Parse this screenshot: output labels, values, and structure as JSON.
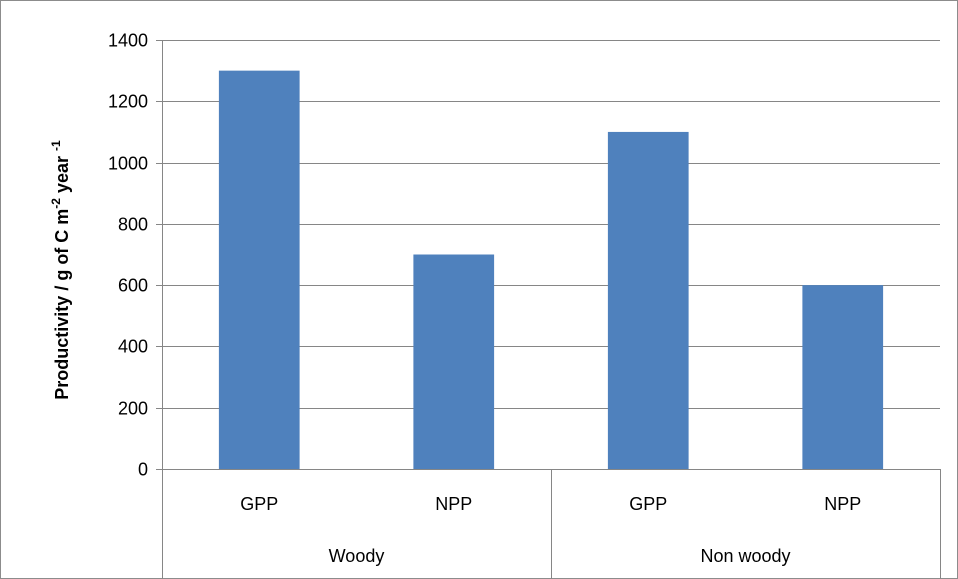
{
  "chart_data": {
    "type": "bar",
    "categories": [
      {
        "group": "Woody",
        "label": "GPP"
      },
      {
        "group": "Woody",
        "label": "NPP"
      },
      {
        "group": "Non woody",
        "label": "GPP"
      },
      {
        "group": "Non woody",
        "label": "NPP"
      }
    ],
    "groups": [
      "Woody",
      "Non woody"
    ],
    "values": [
      1300,
      700,
      1100,
      600
    ],
    "title": "",
    "xlabel": "",
    "ylabel": {
      "main": "Productivity / g of C m",
      "sup1": "-2",
      "mid": " year ",
      "sup2": "-1"
    },
    "ylim": [
      0,
      1400
    ],
    "yticks": [
      0,
      200,
      400,
      600,
      800,
      1000,
      1200,
      1400
    ],
    "grid": true,
    "legend": "none",
    "bar_color": "#4f81bd",
    "grid_color": "#868686"
  }
}
